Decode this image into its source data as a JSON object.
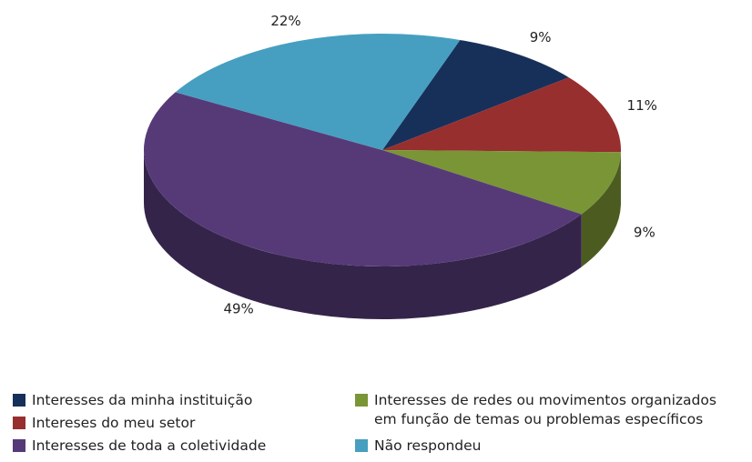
{
  "chart_data": {
    "type": "pie",
    "categories": [
      "Interesses da minha instituição",
      "Intereses do meu setor",
      "Interesses de redes ou movimentos organizados em função de temas ou problemas específicos",
      "Interesses de toda a coletividade",
      "Não respondeu"
    ],
    "values": [
      9,
      11,
      9,
      49,
      22
    ],
    "value_labels": [
      "9%",
      "11%",
      "9%",
      "49%",
      "22%"
    ],
    "colors": [
      "#17305a",
      "#972f2e",
      "#7a9535",
      "#563a78",
      "#469fc0"
    ],
    "legend": "bottom"
  }
}
